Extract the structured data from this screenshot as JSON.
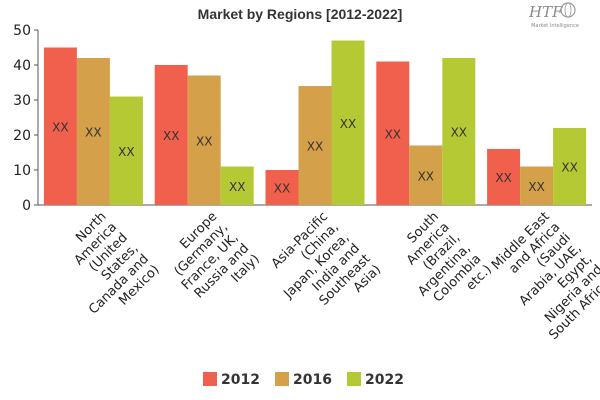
{
  "logo": {
    "text": "HTF",
    "subtext": "Market Intelligence"
  },
  "chart_data": {
    "type": "bar",
    "title": "Market by Regions [2012-2022]",
    "categories": [
      "North America (United States, Canada and Mexico)",
      "Europe (Germany, France, UK, Russia and Italy)",
      "Asia-Pacific (China, Japan, Korea, India and Southeast Asia)",
      "South America (Brazil, Argentina, Colombia etc.)",
      "Middle East and Africa (Saudi Arabia, UAE, Egypt, Nigeria and South Africa)"
    ],
    "category_lines": [
      [
        "North",
        "America",
        "(United",
        "States,",
        "Canada and",
        "Mexico)"
      ],
      [
        "Europe",
        "(Germany,",
        "France, UK,",
        "Russia and",
        "Italy)"
      ],
      [
        "Asia-Pacific",
        "(China,",
        "Japan, Korea,",
        "India and",
        "Southeast",
        "Asia)"
      ],
      [
        "South",
        "America",
        "(Brazil,",
        "Argentina,",
        "Colombia",
        "etc.)"
      ],
      [
        "Middle East",
        "and Africa",
        "(Saudi",
        "Arabia, UAE,",
        "Egypt,",
        "Nigeria and",
        "South Africa)"
      ]
    ],
    "series": [
      {
        "name": "2012",
        "color": "#f0604d",
        "values": [
          45,
          40,
          10,
          41,
          16
        ]
      },
      {
        "name": "2016",
        "color": "#d4a04a",
        "values": [
          42,
          37,
          34,
          17,
          11
        ]
      },
      {
        "name": "2022",
        "color": "#b5c934",
        "values": [
          31,
          11,
          47,
          42,
          22
        ]
      }
    ],
    "data_label": "XX",
    "ylim": [
      0,
      50
    ],
    "yticks": [
      0,
      10,
      20,
      30,
      40,
      50
    ],
    "xlabel": "",
    "ylabel": "",
    "grid": false,
    "legend_position": "bottom"
  }
}
